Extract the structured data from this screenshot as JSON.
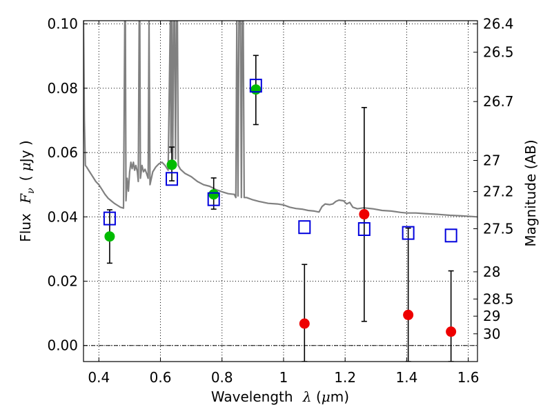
{
  "chart_data": {
    "type": "scatter",
    "title": "",
    "xlabel_text": "Wavelength",
    "xlabel_symbol": "λ",
    "xlabel_unit_open": " (",
    "xlabel_unit_mu": "μ",
    "xlabel_unit_close": "m)",
    "ylabel_text": "Flux",
    "ylabel_symbol": "F",
    "ylabel_symbol_sub": "ν",
    "ylabel_unit_open": "( ",
    "ylabel_unit_mu": "μ",
    "ylabel_unit_close": "Jy )",
    "y2label": "Magnitude (AB)",
    "xlim": [
      0.35,
      1.63
    ],
    "ylim": [
      -0.005,
      0.101
    ],
    "grid": true,
    "x_ticks": [
      0.4,
      0.6,
      0.8,
      1.0,
      1.2,
      1.4,
      1.6
    ],
    "x_tick_labels": [
      "0.4",
      "0.6",
      "0.8",
      "1",
      "1.2",
      "1.4",
      "1.6"
    ],
    "y_ticks": [
      0.0,
      0.02,
      0.04,
      0.06,
      0.08,
      0.1
    ],
    "y_tick_labels": [
      "0.00",
      "0.02",
      "0.04",
      "0.06",
      "0.08",
      "0.10"
    ],
    "y2_ticks": [
      26.4,
      26.5,
      26.7,
      27,
      27.2,
      27.5,
      28,
      28.5,
      29,
      30
    ],
    "y2_tick_labels": [
      "26.4",
      "26.5",
      "26.7",
      "27",
      "27.2",
      "27.5",
      "28",
      "28.5",
      "29",
      "30"
    ],
    "series": [
      {
        "marker": "filled-circle",
        "color": "#00bb00",
        "points": [
          {
            "x": 0.435,
            "y": 0.0339,
            "yerr_low": 0.0256,
            "yerr_high": 0.0422
          },
          {
            "x": 0.637,
            "y": 0.0562,
            "yerr_low": 0.0512,
            "yerr_high": 0.0617
          },
          {
            "x": 0.773,
            "y": 0.047,
            "yerr_low": 0.0424,
            "yerr_high": 0.0521
          },
          {
            "x": 0.91,
            "y": 0.0796,
            "yerr_low": 0.0687,
            "yerr_high": 0.0902
          }
        ]
      },
      {
        "marker": "filled-circle",
        "color": "#ee0000",
        "points": [
          {
            "x": 1.068,
            "y": 0.0068,
            "yerr_low": -0.005,
            "yerr_high": 0.0252
          },
          {
            "x": 1.262,
            "y": 0.0408,
            "yerr_low": 0.0075,
            "yerr_high": 0.074
          },
          {
            "x": 1.405,
            "y": 0.0095,
            "yerr_low": -0.005,
            "yerr_high": 0.0365
          },
          {
            "x": 1.544,
            "y": 0.0043,
            "yerr_low": -0.005,
            "yerr_high": 0.0232
          }
        ]
      },
      {
        "marker": "open-square",
        "color": "#0000dd",
        "points": [
          {
            "x": 0.435,
            "y": 0.0395
          },
          {
            "x": 0.637,
            "y": 0.0518
          },
          {
            "x": 0.773,
            "y": 0.0455
          },
          {
            "x": 0.91,
            "y": 0.0808
          },
          {
            "x": 1.068,
            "y": 0.0368
          },
          {
            "x": 1.262,
            "y": 0.0362
          },
          {
            "x": 1.405,
            "y": 0.035
          },
          {
            "x": 1.544,
            "y": 0.0342
          }
        ]
      },
      {
        "marker": "line",
        "color": "#808080",
        "points": [
          [
            0.35,
            0.101
          ],
          [
            0.353,
            0.07
          ],
          [
            0.356,
            0.056
          ],
          [
            0.36,
            0.0555
          ],
          [
            0.37,
            0.054
          ],
          [
            0.38,
            0.0525
          ],
          [
            0.39,
            0.051
          ],
          [
            0.4,
            0.05
          ],
          [
            0.41,
            0.0485
          ],
          [
            0.42,
            0.047
          ],
          [
            0.43,
            0.0458
          ],
          [
            0.44,
            0.045
          ],
          [
            0.45,
            0.0442
          ],
          [
            0.46,
            0.0436
          ],
          [
            0.47,
            0.043
          ],
          [
            0.48,
            0.0427
          ],
          [
            0.484,
            0.101
          ],
          [
            0.486,
            0.101
          ],
          [
            0.488,
            0.045
          ],
          [
            0.492,
            0.052
          ],
          [
            0.496,
            0.048
          ],
          [
            0.5,
            0.054
          ],
          [
            0.504,
            0.057
          ],
          [
            0.508,
            0.055
          ],
          [
            0.512,
            0.057
          ],
          [
            0.516,
            0.0545
          ],
          [
            0.52,
            0.056
          ],
          [
            0.525,
            0.054
          ],
          [
            0.528,
            0.051
          ],
          [
            0.531,
            0.101
          ],
          [
            0.533,
            0.101
          ],
          [
            0.535,
            0.052
          ],
          [
            0.54,
            0.056
          ],
          [
            0.545,
            0.054
          ],
          [
            0.55,
            0.0548
          ],
          [
            0.555,
            0.0535
          ],
          [
            0.56,
            0.052
          ],
          [
            0.563,
            0.101
          ],
          [
            0.566,
            0.05
          ],
          [
            0.575,
            0.054
          ],
          [
            0.585,
            0.0555
          ],
          [
            0.595,
            0.0565
          ],
          [
            0.605,
            0.057
          ],
          [
            0.615,
            0.056
          ],
          [
            0.625,
            0.0545
          ],
          [
            0.632,
            0.101
          ],
          [
            0.634,
            0.06
          ],
          [
            0.637,
            0.101
          ],
          [
            0.64,
            0.058
          ],
          [
            0.643,
            0.101
          ],
          [
            0.646,
            0.101
          ],
          [
            0.649,
            0.058
          ],
          [
            0.652,
            0.101
          ],
          [
            0.655,
            0.101
          ],
          [
            0.658,
            0.056
          ],
          [
            0.665,
            0.0548
          ],
          [
            0.68,
            0.0535
          ],
          [
            0.7,
            0.0525
          ],
          [
            0.72,
            0.051
          ],
          [
            0.74,
            0.05
          ],
          [
            0.76,
            0.0495
          ],
          [
            0.78,
            0.0485
          ],
          [
            0.8,
            0.0478
          ],
          [
            0.82,
            0.0472
          ],
          [
            0.84,
            0.047
          ],
          [
            0.845,
            0.046
          ],
          [
            0.848,
            0.101
          ],
          [
            0.852,
            0.0465
          ],
          [
            0.855,
            0.101
          ],
          [
            0.86,
            0.101
          ],
          [
            0.863,
            0.046
          ],
          [
            0.866,
            0.101
          ],
          [
            0.869,
            0.101
          ],
          [
            0.872,
            0.046
          ],
          [
            0.88,
            0.046
          ],
          [
            0.9,
            0.0453
          ],
          [
            0.92,
            0.0448
          ],
          [
            0.95,
            0.0442
          ],
          [
            0.98,
            0.044
          ],
          [
            1.0,
            0.0437
          ],
          [
            1.02,
            0.043
          ],
          [
            1.04,
            0.0426
          ],
          [
            1.06,
            0.0424
          ],
          [
            1.08,
            0.042
          ],
          [
            1.1,
            0.0418
          ],
          [
            1.115,
            0.0415
          ],
          [
            1.125,
            0.0432
          ],
          [
            1.135,
            0.044
          ],
          [
            1.15,
            0.0438
          ],
          [
            1.16,
            0.044
          ],
          [
            1.17,
            0.0448
          ],
          [
            1.18,
            0.0452
          ],
          [
            1.195,
            0.045
          ],
          [
            1.205,
            0.044
          ],
          [
            1.215,
            0.0445
          ],
          [
            1.225,
            0.043
          ],
          [
            1.24,
            0.0425
          ],
          [
            1.26,
            0.0428
          ],
          [
            1.29,
            0.0425
          ],
          [
            1.32,
            0.042
          ],
          [
            1.35,
            0.0418
          ],
          [
            1.38,
            0.0414
          ],
          [
            1.4,
            0.0412
          ],
          [
            1.43,
            0.0412
          ],
          [
            1.46,
            0.041
          ],
          [
            1.5,
            0.0408
          ],
          [
            1.54,
            0.0405
          ],
          [
            1.58,
            0.0403
          ],
          [
            1.63,
            0.04
          ]
        ]
      }
    ]
  }
}
